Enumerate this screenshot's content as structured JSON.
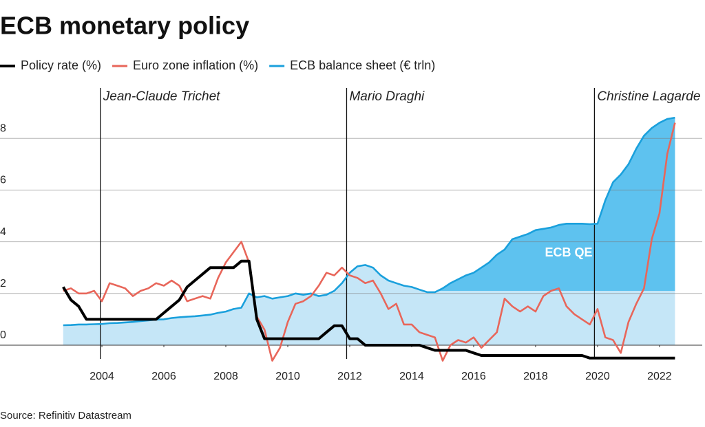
{
  "chart_data": {
    "type": "line",
    "title": "ECB monetary policy",
    "source": "Source: Refinitiv Datastream",
    "x": [
      2002.75,
      2003.0,
      2003.25,
      2003.5,
      2003.75,
      2004.0,
      2004.25,
      2004.5,
      2004.75,
      2005.0,
      2005.25,
      2005.5,
      2005.75,
      2006.0,
      2006.25,
      2006.5,
      2006.75,
      2007.0,
      2007.25,
      2007.5,
      2007.75,
      2008.0,
      2008.25,
      2008.5,
      2008.75,
      2009.0,
      2009.25,
      2009.5,
      2009.75,
      2010.0,
      2010.25,
      2010.5,
      2010.75,
      2011.0,
      2011.25,
      2011.5,
      2011.75,
      2012.0,
      2012.25,
      2012.5,
      2012.75,
      2013.0,
      2013.25,
      2013.5,
      2013.75,
      2014.0,
      2014.25,
      2014.5,
      2014.75,
      2015.0,
      2015.25,
      2015.5,
      2015.75,
      2016.0,
      2016.25,
      2016.5,
      2016.75,
      2017.0,
      2017.25,
      2017.5,
      2017.75,
      2018.0,
      2018.25,
      2018.5,
      2018.75,
      2019.0,
      2019.25,
      2019.5,
      2019.75,
      2020.0,
      2020.25,
      2020.5,
      2020.75,
      2021.0,
      2021.25,
      2021.5,
      2021.75,
      2022.0,
      2022.25,
      2022.5
    ],
    "series": [
      {
        "name": "ECB balance sheet (€ trln)",
        "color": "#1aa0dc",
        "fill": "#c5e6f7",
        "style": "area",
        "values": [
          0.77,
          0.78,
          0.8,
          0.8,
          0.81,
          0.82,
          0.85,
          0.86,
          0.88,
          0.9,
          0.93,
          0.96,
          0.99,
          1.0,
          1.05,
          1.08,
          1.1,
          1.12,
          1.15,
          1.18,
          1.25,
          1.3,
          1.4,
          1.45,
          2.0,
          1.85,
          1.9,
          1.8,
          1.85,
          1.9,
          2.0,
          1.95,
          2.0,
          1.9,
          1.95,
          2.1,
          2.4,
          2.8,
          3.05,
          3.1,
          3.0,
          2.7,
          2.5,
          2.4,
          2.3,
          2.25,
          2.15,
          2.05,
          2.05,
          2.2,
          2.4,
          2.55,
          2.7,
          2.8,
          3.0,
          3.2,
          3.5,
          3.7,
          4.1,
          4.2,
          4.3,
          4.45,
          4.5,
          4.55,
          4.65,
          4.7,
          4.7,
          4.7,
          4.68,
          4.7,
          5.6,
          6.3,
          6.6,
          7.0,
          7.6,
          8.1,
          8.4,
          8.6,
          8.75,
          8.8
        ]
      },
      {
        "name": "Euro zone inflation (%)",
        "color": "#e8665a",
        "style": "line",
        "values": [
          2.1,
          2.2,
          2.0,
          2.0,
          2.1,
          1.7,
          2.4,
          2.3,
          2.2,
          1.9,
          2.1,
          2.2,
          2.4,
          2.3,
          2.5,
          2.3,
          1.7,
          1.8,
          1.9,
          1.8,
          2.6,
          3.2,
          3.6,
          4.0,
          3.2,
          1.1,
          0.6,
          -0.6,
          -0.1,
          0.9,
          1.6,
          1.7,
          1.9,
          2.3,
          2.8,
          2.7,
          3.0,
          2.7,
          2.6,
          2.4,
          2.5,
          2.0,
          1.4,
          1.6,
          0.8,
          0.8,
          0.5,
          0.4,
          0.3,
          -0.6,
          0.0,
          0.2,
          0.1,
          0.3,
          -0.1,
          0.2,
          0.5,
          1.8,
          1.5,
          1.3,
          1.5,
          1.3,
          1.9,
          2.1,
          2.2,
          1.5,
          1.2,
          1.0,
          0.8,
          1.4,
          0.3,
          0.2,
          -0.3,
          0.9,
          1.6,
          2.2,
          4.1,
          5.1,
          7.4,
          8.6
        ]
      },
      {
        "name": "Policy rate (%)",
        "color": "#000000",
        "style": "line",
        "values": [
          2.25,
          1.75,
          1.5,
          1.0,
          1.0,
          1.0,
          1.0,
          1.0,
          1.0,
          1.0,
          1.0,
          1.0,
          1.0,
          1.25,
          1.5,
          1.75,
          2.25,
          2.5,
          2.75,
          3.0,
          3.0,
          3.0,
          3.0,
          3.25,
          3.25,
          1.0,
          0.25,
          0.25,
          0.25,
          0.25,
          0.25,
          0.25,
          0.25,
          0.25,
          0.5,
          0.75,
          0.75,
          0.25,
          0.25,
          0,
          0,
          0,
          0,
          0,
          0,
          0,
          0,
          -0.1,
          -0.2,
          -0.2,
          -0.2,
          -0.2,
          -0.2,
          -0.3,
          -0.4,
          -0.4,
          -0.4,
          -0.4,
          -0.4,
          -0.4,
          -0.4,
          -0.4,
          -0.4,
          -0.4,
          -0.4,
          -0.4,
          -0.4,
          -0.4,
          -0.5,
          -0.5,
          -0.5,
          -0.5,
          -0.5,
          -0.5,
          -0.5,
          -0.5,
          -0.5,
          -0.5,
          -0.5,
          -0.5
        ]
      }
    ],
    "legend_order": [
      2,
      1,
      0
    ],
    "shaded_region": {
      "label": "ECB QE",
      "color": "#5ec2ef",
      "x_from": 2014.75,
      "y_from": 2.1
    },
    "annotations": [
      {
        "text": "Jean-Claude Trichet",
        "x": 2003.95
      },
      {
        "text": "Mario Draghi",
        "x": 2011.9
      },
      {
        "text": "Christine Lagarde",
        "x": 2019.9
      }
    ],
    "xlim": [
      2000.71,
      2023.38
    ],
    "xticks": [
      2004,
      2006,
      2008,
      2010,
      2012,
      2014,
      2016,
      2018,
      2020,
      2022
    ],
    "ylim": [
      -1,
      10
    ],
    "yticks": [
      0,
      2,
      4,
      6,
      8
    ],
    "grid": true
  }
}
